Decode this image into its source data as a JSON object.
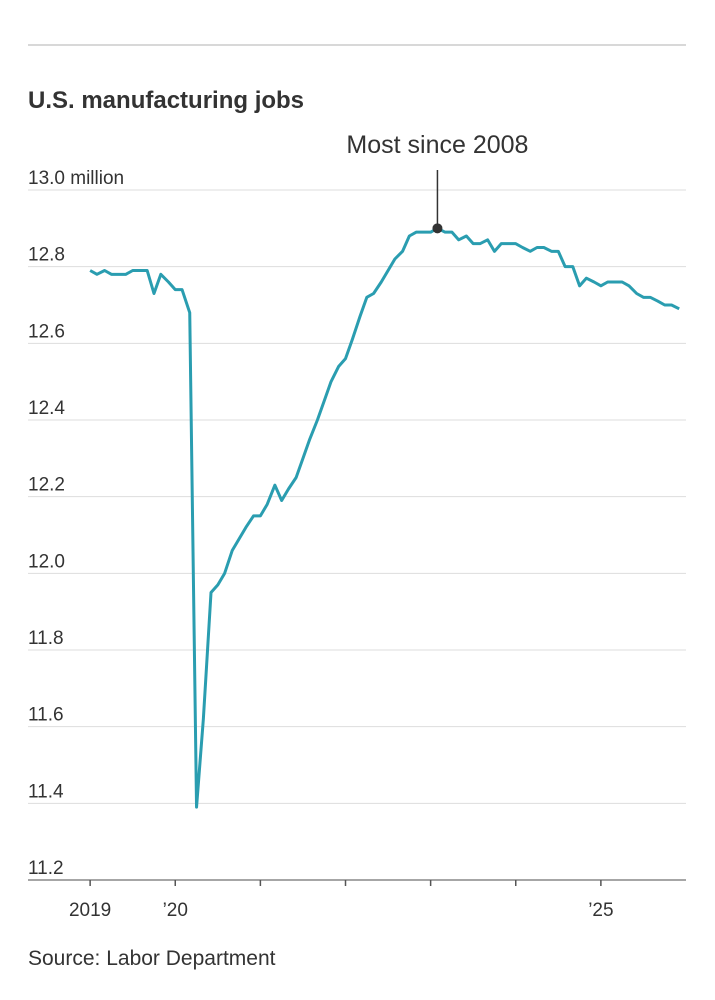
{
  "chart_data": {
    "type": "line",
    "title": "U.S. manufacturing jobs",
    "source": "Source: Labor Department",
    "annotations": [
      {
        "text": "Most since 2008",
        "index": 49
      }
    ],
    "color": "#2a9db0",
    "grid": true,
    "xlim": [
      2018.27,
      2026
    ],
    "xticks": [
      2019,
      2020,
      2021,
      2022,
      2023,
      2024,
      2025
    ],
    "xtick_labels": [
      {
        "value": 2019,
        "label": "2019"
      },
      {
        "value": 2020,
        "label": "’20"
      },
      {
        "value": 2025,
        "label": "’25"
      }
    ],
    "ylim": [
      11.2,
      13
    ],
    "yticks": [
      11.2,
      11.4,
      11.6,
      11.8,
      {
        "value": 12,
        "label": "12.0"
      },
      12.2,
      12.4,
      12.6,
      12.8,
      {
        "value": 13,
        "label": "13.0 million"
      }
    ],
    "x": [
      2019,
      2019.08,
      2019.17,
      2019.25,
      2019.33,
      2019.42,
      2019.5,
      2019.58,
      2019.67,
      2019.75,
      2019.83,
      2019.92,
      2020,
      2020.08,
      2020.17,
      2020.25,
      2020.33,
      2020.42,
      2020.5,
      2020.58,
      2020.67,
      2020.75,
      2020.83,
      2020.92,
      2021,
      2021.08,
      2021.17,
      2021.25,
      2021.33,
      2021.42,
      2021.5,
      2021.58,
      2021.67,
      2021.75,
      2021.83,
      2021.92,
      2022,
      2022.08,
      2022.17,
      2022.25,
      2022.33,
      2022.42,
      2022.5,
      2022.58,
      2022.67,
      2022.75,
      2022.83,
      2022.92,
      2023,
      2023.08,
      2023.17,
      2023.25,
      2023.33,
      2023.42,
      2023.5,
      2023.58,
      2023.67,
      2023.75,
      2023.83,
      2023.92,
      2024,
      2024.08,
      2024.17,
      2024.25,
      2024.33,
      2024.42,
      2024.5,
      2024.58,
      2024.67,
      2024.75,
      2024.83,
      2024.92,
      2025,
      2025.08,
      2025.17,
      2025.25,
      2025.33,
      2025.42,
      2025.5,
      2025.58,
      2025.67,
      2025.75,
      2025.83,
      2025.92
    ],
    "series": [
      {
        "name": "Manufacturing jobs",
        "color": "#2a9db0",
        "values": [
          12.79,
          12.78,
          12.79,
          12.78,
          12.78,
          12.78,
          12.79,
          12.79,
          12.79,
          12.73,
          12.78,
          12.76,
          12.74,
          12.74,
          12.68,
          11.39,
          11.62,
          11.95,
          11.97,
          12.0,
          12.06,
          12.09,
          12.12,
          12.15,
          12.15,
          12.18,
          12.23,
          12.19,
          12.22,
          12.25,
          12.3,
          12.35,
          12.4,
          12.45,
          12.5,
          12.54,
          12.56,
          12.61,
          12.67,
          12.72,
          12.73,
          12.76,
          12.79,
          12.82,
          12.84,
          12.88,
          12.89,
          12.89,
          12.89,
          12.9,
          12.89,
          12.89,
          12.87,
          12.88,
          12.86,
          12.86,
          12.87,
          12.84,
          12.86,
          12.86,
          12.86,
          12.85,
          12.84,
          12.85,
          12.85,
          12.84,
          12.84,
          12.8,
          12.8,
          12.75,
          12.77,
          12.76,
          12.75,
          12.76,
          12.76,
          12.76,
          12.75,
          12.73,
          12.72,
          12.72,
          12.71,
          12.7,
          12.7,
          12.69
        ]
      }
    ]
  }
}
